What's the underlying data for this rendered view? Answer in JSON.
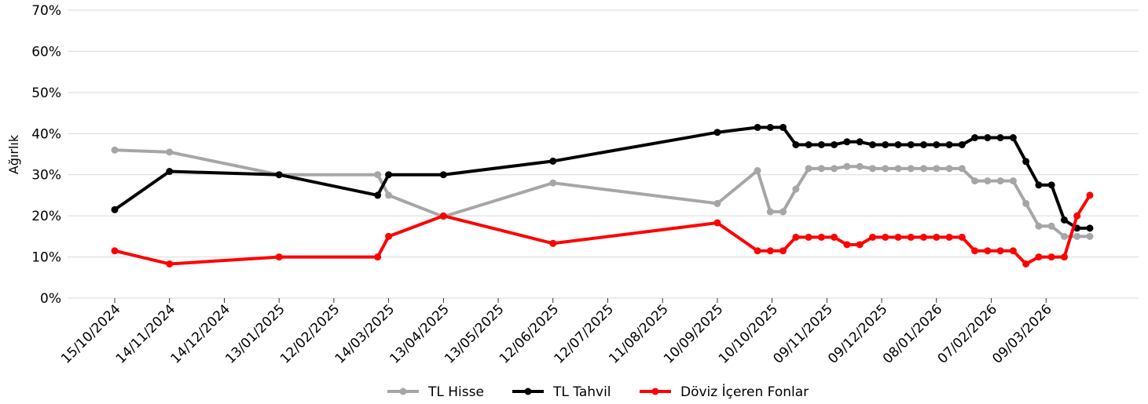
{
  "chart_data": {
    "type": "line",
    "ylabel": "Ağırlık",
    "ylim": [
      0,
      70
    ],
    "y_unit": "%",
    "y_ticks": [
      0,
      10,
      20,
      30,
      40,
      50,
      60,
      70
    ],
    "x_tick_labels": [
      "15/10/2024",
      "14/11/2024",
      "14/12/2024",
      "13/01/2025",
      "12/02/2025",
      "14/03/2025",
      "13/04/2025",
      "13/05/2025",
      "12/06/2025",
      "12/07/2025",
      "11/08/2025",
      "10/09/2025",
      "10/10/2025",
      "09/11/2025",
      "09/12/2025",
      "08/01/2026",
      "07/02/2026",
      "09/03/2026"
    ],
    "grid": "horizontal",
    "legend_position": "bottom-center",
    "series": [
      {
        "name": "TL Hisse",
        "color": "#a6a6a6",
        "points": [
          [
            "2024-10-15",
            36.0
          ],
          [
            "2024-11-14",
            35.5
          ],
          [
            "2025-01-13",
            30.0
          ],
          [
            "2025-03-08",
            30.0
          ],
          [
            "2025-03-14",
            25.0
          ],
          [
            "2025-04-13",
            19.8
          ],
          [
            "2025-06-12",
            28.0
          ],
          [
            "2025-09-10",
            23.0
          ],
          [
            "2025-10-02",
            31.0
          ],
          [
            "2025-10-09",
            21.0
          ],
          [
            "2025-10-16",
            21.0
          ],
          [
            "2025-10-23",
            26.5
          ],
          [
            "2025-10-30",
            31.5
          ],
          [
            "2025-11-06",
            31.5
          ],
          [
            "2025-11-13",
            31.5
          ],
          [
            "2025-11-20",
            32.0
          ],
          [
            "2025-11-27",
            32.0
          ],
          [
            "2025-12-04",
            31.5
          ],
          [
            "2025-12-11",
            31.5
          ],
          [
            "2025-12-18",
            31.5
          ],
          [
            "2025-12-25",
            31.5
          ],
          [
            "2026-01-01",
            31.5
          ],
          [
            "2026-01-08",
            31.5
          ],
          [
            "2026-01-15",
            31.5
          ],
          [
            "2026-01-22",
            31.5
          ],
          [
            "2026-01-29",
            28.5
          ],
          [
            "2026-02-05",
            28.5
          ],
          [
            "2026-02-12",
            28.5
          ],
          [
            "2026-02-19",
            28.5
          ],
          [
            "2026-02-26",
            23.0
          ],
          [
            "2026-03-05",
            17.5
          ],
          [
            "2026-03-12",
            17.5
          ],
          [
            "2026-03-19",
            15.0
          ],
          [
            "2026-03-26",
            15.0
          ],
          [
            "2026-04-02",
            15.0
          ]
        ]
      },
      {
        "name": "TL Tahvil",
        "color": "#000000",
        "points": [
          [
            "2024-10-15",
            21.5
          ],
          [
            "2024-11-14",
            30.8
          ],
          [
            "2025-01-13",
            30.0
          ],
          [
            "2025-03-08",
            25.0
          ],
          [
            "2025-03-14",
            30.0
          ],
          [
            "2025-04-13",
            30.0
          ],
          [
            "2025-06-12",
            33.3
          ],
          [
            "2025-09-10",
            40.3
          ],
          [
            "2025-10-02",
            41.5
          ],
          [
            "2025-10-09",
            41.5
          ],
          [
            "2025-10-16",
            41.5
          ],
          [
            "2025-10-23",
            37.3
          ],
          [
            "2025-10-30",
            37.3
          ],
          [
            "2025-11-06",
            37.3
          ],
          [
            "2025-11-13",
            37.3
          ],
          [
            "2025-11-20",
            38.0
          ],
          [
            "2025-11-27",
            38.0
          ],
          [
            "2025-12-04",
            37.3
          ],
          [
            "2025-12-11",
            37.3
          ],
          [
            "2025-12-18",
            37.3
          ],
          [
            "2025-12-25",
            37.3
          ],
          [
            "2026-01-01",
            37.3
          ],
          [
            "2026-01-08",
            37.3
          ],
          [
            "2026-01-15",
            37.3
          ],
          [
            "2026-01-22",
            37.3
          ],
          [
            "2026-01-29",
            39.0
          ],
          [
            "2026-02-05",
            39.0
          ],
          [
            "2026-02-12",
            39.0
          ],
          [
            "2026-02-19",
            39.0
          ],
          [
            "2026-02-26",
            33.2
          ],
          [
            "2026-03-05",
            27.5
          ],
          [
            "2026-03-12",
            27.5
          ],
          [
            "2026-03-19",
            19.0
          ],
          [
            "2026-03-26",
            17.0
          ],
          [
            "2026-04-02",
            17.0
          ]
        ]
      },
      {
        "name": "Döviz İçeren Fonlar",
        "color": "#ff0000",
        "points": [
          [
            "2024-10-15",
            11.5
          ],
          [
            "2024-11-14",
            8.3
          ],
          [
            "2025-01-13",
            10.0
          ],
          [
            "2025-03-08",
            10.0
          ],
          [
            "2025-03-14",
            15.0
          ],
          [
            "2025-04-13",
            20.0
          ],
          [
            "2025-06-12",
            13.3
          ],
          [
            "2025-09-10",
            18.3
          ],
          [
            "2025-10-02",
            11.5
          ],
          [
            "2025-10-09",
            11.5
          ],
          [
            "2025-10-16",
            11.5
          ],
          [
            "2025-10-23",
            14.8
          ],
          [
            "2025-10-30",
            14.8
          ],
          [
            "2025-11-06",
            14.8
          ],
          [
            "2025-11-13",
            14.8
          ],
          [
            "2025-11-20",
            13.0
          ],
          [
            "2025-11-27",
            13.0
          ],
          [
            "2025-12-04",
            14.8
          ],
          [
            "2025-12-11",
            14.8
          ],
          [
            "2025-12-18",
            14.8
          ],
          [
            "2025-12-25",
            14.8
          ],
          [
            "2026-01-01",
            14.8
          ],
          [
            "2026-01-08",
            14.8
          ],
          [
            "2026-01-15",
            14.8
          ],
          [
            "2026-01-22",
            14.8
          ],
          [
            "2026-01-29",
            11.5
          ],
          [
            "2026-02-05",
            11.5
          ],
          [
            "2026-02-12",
            11.5
          ],
          [
            "2026-02-19",
            11.5
          ],
          [
            "2026-02-26",
            8.3
          ],
          [
            "2026-03-05",
            10.0
          ],
          [
            "2026-03-12",
            10.0
          ],
          [
            "2026-03-19",
            10.0
          ],
          [
            "2026-03-26",
            20.0
          ],
          [
            "2026-04-02",
            25.0
          ]
        ]
      }
    ]
  }
}
